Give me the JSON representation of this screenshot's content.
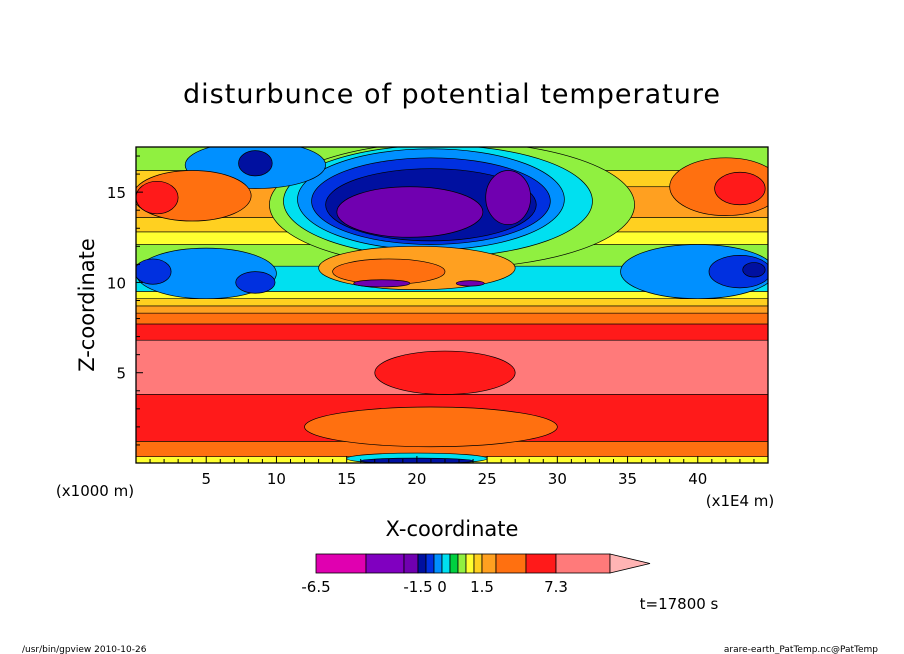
{
  "chart_data": {
    "type": "heatmap",
    "title": "disturbunce of potential temperature",
    "xlabel": "X-coordinate",
    "ylabel": "Z-coordinate",
    "x_unit": "(x1E4 m)",
    "y_unit": "(x1000 m)",
    "xlim": [
      0,
      45
    ],
    "ylim": [
      0,
      17.5
    ],
    "x_ticks": [
      5,
      10,
      15,
      20,
      25,
      30,
      35,
      40
    ],
    "y_ticks": [
      5,
      10,
      15
    ],
    "time_label": "t=17800 s",
    "colorbar": {
      "min": -6.5,
      "max": 7.3,
      "tick_labels": [
        "-6.5",
        "-1.5",
        "0",
        "1.5",
        "7.3"
      ],
      "tick_values": [
        -6.5,
        -1.5,
        0,
        1.5,
        7.3
      ],
      "levels": [
        -6.5,
        -4.5,
        -3,
        -1.5,
        -1,
        -0.5,
        0,
        0.25,
        0.5,
        0.75,
        1,
        1.5,
        3,
        4.5,
        7.3
      ],
      "colors": [
        "#e000b0",
        "#8000c0",
        "#7000b0",
        "#0010a0",
        "#0030e0",
        "#0090ff",
        "#00e0f0",
        "#00d040",
        "#90f040",
        "#ffff30",
        "#ffd020",
        "#ffa020",
        "#ff7010",
        "#ff1a1a",
        "#ff7a7a",
        "#ffb4b4"
      ]
    },
    "bands": [
      {
        "z": [
          0,
          0.35
        ],
        "value": 0.5
      },
      {
        "z": [
          0.35,
          1.2
        ],
        "value": 2
      },
      {
        "z": [
          1.2,
          3.8
        ],
        "value": 3.5
      },
      {
        "z": [
          3.8,
          6.8
        ],
        "value": 5
      },
      {
        "z": [
          6.8,
          7.7
        ],
        "value": 3.5
      },
      {
        "z": [
          7.7,
          8.3
        ],
        "value": 2
      },
      {
        "z": [
          8.3,
          8.7
        ],
        "value": 1.2
      },
      {
        "z": [
          8.7,
          9.1
        ],
        "value": 0.9
      },
      {
        "z": [
          9.1,
          9.5
        ],
        "value": 0.6
      },
      {
        "z": [
          9.5,
          10.9
        ],
        "value": -0.3
      },
      {
        "z": [
          10.9,
          12.1
        ],
        "value": 0.3
      },
      {
        "z": [
          12.1,
          12.8
        ],
        "value": 0.6
      },
      {
        "z": [
          12.8,
          13.6
        ],
        "value": 0.9
      },
      {
        "z": [
          13.6,
          15.3
        ],
        "value": 1.2
      },
      {
        "z": [
          15.3,
          16.2
        ],
        "value": 0.8
      },
      {
        "z": [
          16.2,
          17.5
        ],
        "value": 0.4
      }
    ],
    "features": [
      {
        "cx": 22.5,
        "cz": 14.3,
        "rx": 13,
        "rz": 3.5,
        "value": 0.3
      },
      {
        "cx": 21.5,
        "cz": 14.5,
        "rx": 11,
        "rz": 3.1,
        "value": -0.3
      },
      {
        "cx": 21,
        "cz": 14.6,
        "rx": 9.5,
        "rz": 2.8,
        "value": -0.7
      },
      {
        "cx": 21,
        "cz": 14.5,
        "rx": 8.5,
        "rz": 2.4,
        "value": -1.3
      },
      {
        "cx": 21,
        "cz": 14.3,
        "rx": 7.5,
        "rz": 2.0,
        "value": -2.5
      },
      {
        "cx": 19.5,
        "cz": 13.9,
        "rx": 5.2,
        "rz": 1.4,
        "value": -4
      },
      {
        "cx": 26.5,
        "cz": 14.7,
        "rx": 1.6,
        "rz": 1.5,
        "value": -4
      },
      {
        "cx": 8.5,
        "cz": 16.5,
        "rx": 5,
        "rz": 1.3,
        "value": -0.7
      },
      {
        "cx": 8.5,
        "cz": 16.6,
        "rx": 1.2,
        "rz": 0.7,
        "value": -2.5
      },
      {
        "cx": 42,
        "cz": 15.3,
        "rx": 4,
        "rz": 1.6,
        "value": 1.8
      },
      {
        "cx": 43,
        "cz": 15.2,
        "rx": 1.8,
        "rz": 0.9,
        "value": 3.5
      },
      {
        "cx": 4,
        "cz": 14.8,
        "rx": 4.2,
        "rz": 1.4,
        "value": 1.8
      },
      {
        "cx": 1.5,
        "cz": 14.7,
        "rx": 1.5,
        "rz": 0.9,
        "value": 3.5
      },
      {
        "cx": 5,
        "cz": 10.5,
        "rx": 5,
        "rz": 1.4,
        "value": -0.6
      },
      {
        "cx": 1.2,
        "cz": 10.6,
        "rx": 1.3,
        "rz": 0.7,
        "value": -1.3
      },
      {
        "cx": 8.5,
        "cz": 10.0,
        "rx": 1.4,
        "rz": 0.6,
        "value": -1.3
      },
      {
        "cx": 40,
        "cz": 10.6,
        "rx": 5.5,
        "rz": 1.5,
        "value": -0.6
      },
      {
        "cx": 43,
        "cz": 10.6,
        "rx": 2.2,
        "rz": 0.9,
        "value": -1.3
      },
      {
        "cx": 44,
        "cz": 10.7,
        "rx": 0.8,
        "rz": 0.4,
        "value": -2.5
      },
      {
        "cx": 20,
        "cz": 10.8,
        "rx": 7,
        "rz": 1.2,
        "value": 1.2
      },
      {
        "cx": 18,
        "cz": 10.6,
        "rx": 4,
        "rz": 0.7,
        "value": 2
      },
      {
        "cx": 17.5,
        "cz": 9.95,
        "rx": 2.0,
        "rz": 0.2,
        "value": -4
      },
      {
        "cx": 23.8,
        "cz": 9.95,
        "rx": 1.0,
        "rz": 0.15,
        "value": -4
      },
      {
        "cx": 22,
        "cz": 5.0,
        "rx": 5,
        "rz": 1.2,
        "value": 3.5
      },
      {
        "cx": 21,
        "cz": 2.0,
        "rx": 9,
        "rz": 1.1,
        "value": 2
      },
      {
        "cx": 20,
        "cz": 0.25,
        "rx": 5,
        "rz": 0.3,
        "value": -0.3
      },
      {
        "cx": 20,
        "cz": 0.12,
        "rx": 4,
        "rz": 0.15,
        "value": -2.5
      }
    ]
  },
  "footer": {
    "left": "/usr/bin/gpview  2010-10-26",
    "right": "arare-earth_PatTemp.nc@PatTemp"
  }
}
